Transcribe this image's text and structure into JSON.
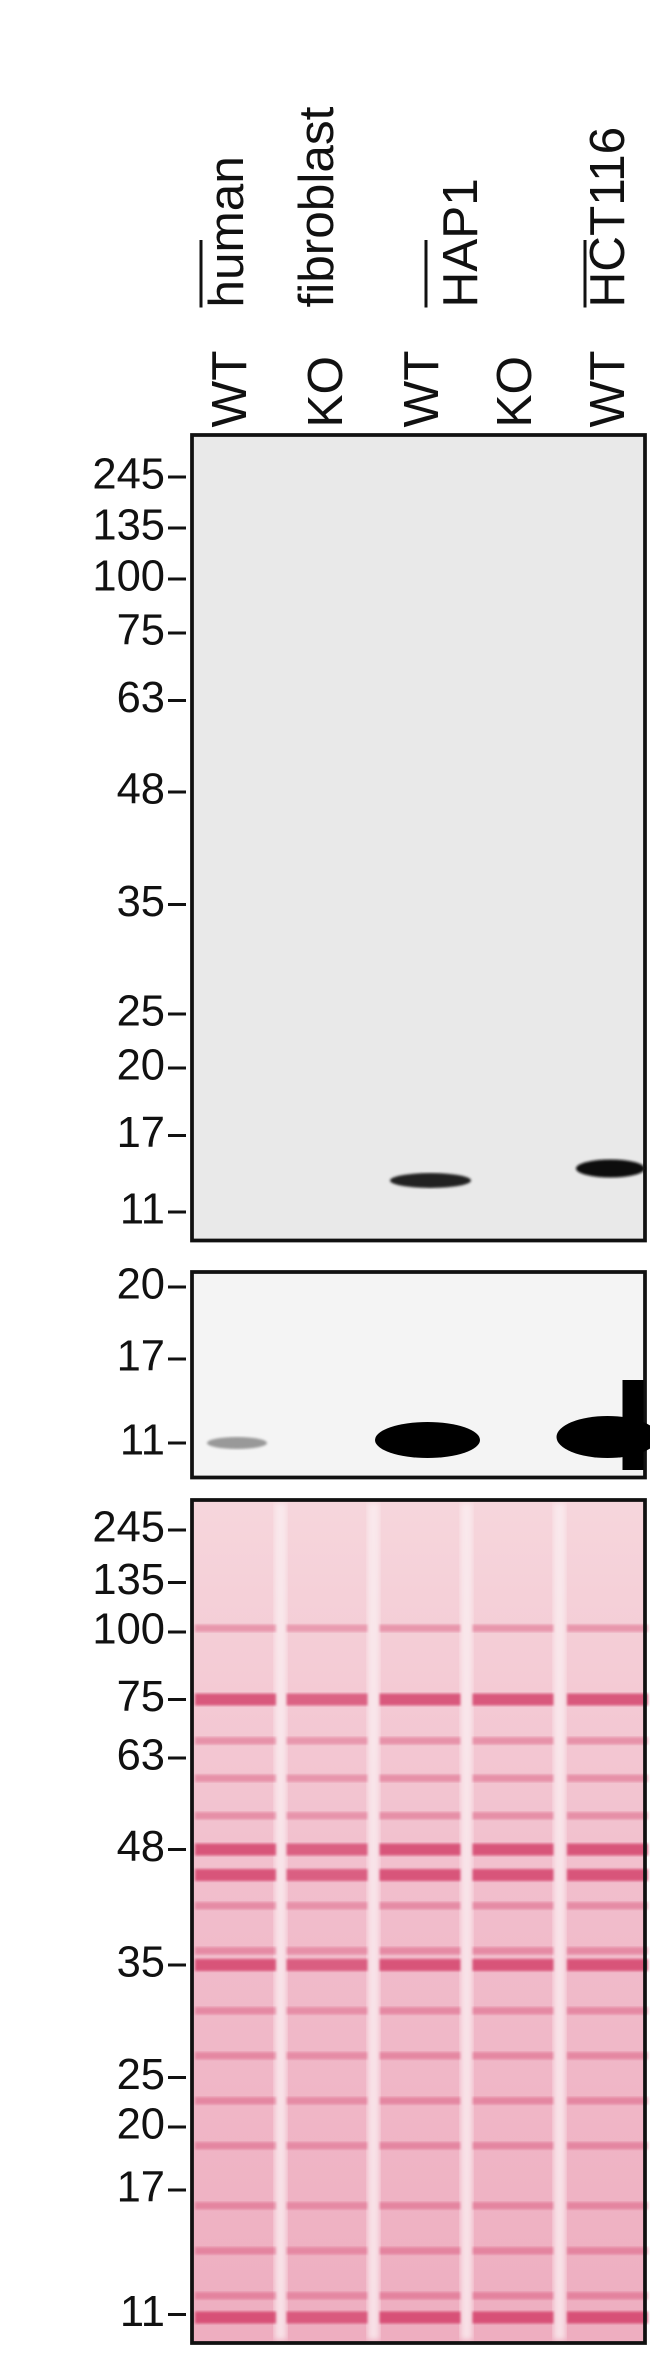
{
  "header": {
    "cell_lines": [
      "human",
      "fibroblast",
      "HAP1",
      "HCT116"
    ],
    "lanes": [
      "WT",
      "KO",
      "WT",
      "KO",
      "WT"
    ]
  },
  "panels": [
    {
      "markers": [
        "245",
        "135",
        "100",
        "75",
        "63",
        "48",
        "35",
        "25",
        "20",
        "17",
        "11"
      ]
    },
    {
      "markers": [
        "20",
        "17",
        "11"
      ]
    },
    {
      "markers": [
        "245",
        "135",
        "100",
        "75",
        "63",
        "48",
        "35",
        "25",
        "20",
        "17",
        "11"
      ]
    }
  ]
}
